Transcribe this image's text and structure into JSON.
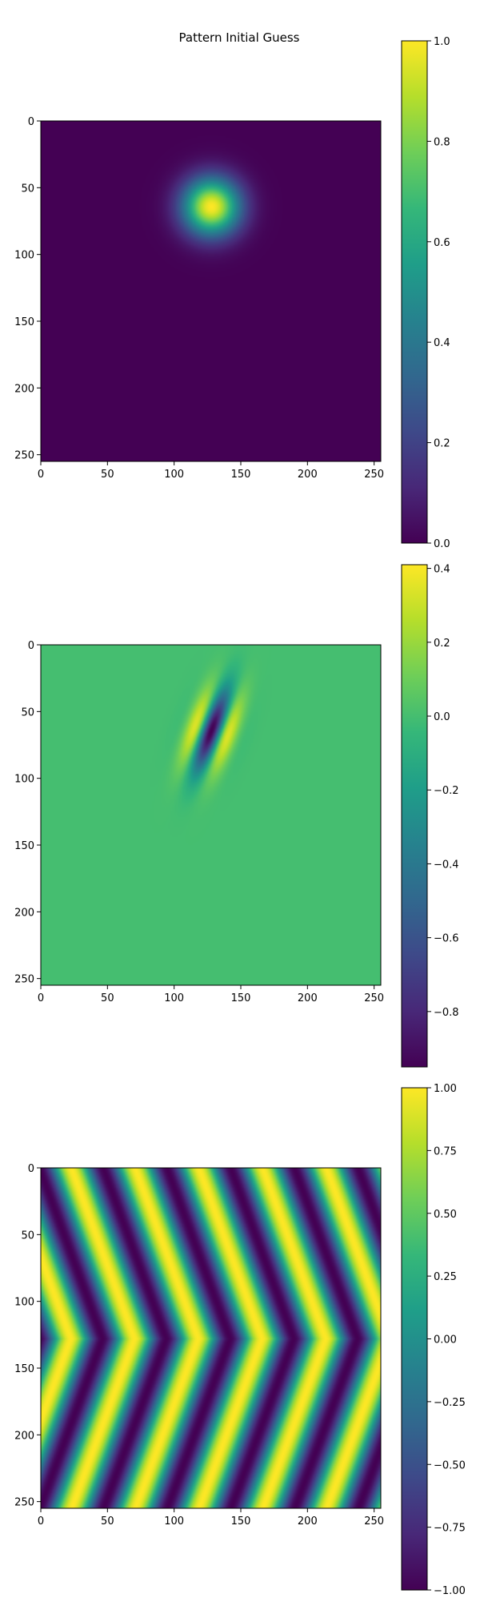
{
  "figure": {
    "title": "Pattern Initial Guess"
  },
  "colors": {
    "viridis": [
      "#440154",
      "#482878",
      "#3e4989",
      "#31688e",
      "#26828e",
      "#1f9e89",
      "#35b779",
      "#6ece58",
      "#b5de2b",
      "#fde725"
    ]
  },
  "chart_data": [
    {
      "type": "heatmap",
      "pattern": "gaussian blob",
      "title": "",
      "xlabel": "",
      "ylabel": "",
      "xlim": [
        0,
        255
      ],
      "ylim": [
        255,
        0
      ],
      "xticks": [
        "0",
        "50",
        "100",
        "150",
        "200",
        "250"
      ],
      "yticks": [
        "0",
        "50",
        "100",
        "150",
        "200",
        "250"
      ],
      "center": [
        128,
        64
      ],
      "value_range": [
        0.0,
        1.0
      ],
      "colorbar": {
        "colormap": "viridis",
        "range": [
          0.0,
          1.0
        ],
        "ticks": [
          {
            "value": 0.0,
            "label": "0.0"
          },
          {
            "value": 0.2,
            "label": "0.2"
          },
          {
            "value": 0.4,
            "label": "0.4"
          },
          {
            "value": 0.6,
            "label": "0.6"
          },
          {
            "value": 0.8,
            "label": "0.8"
          },
          {
            "value": 1.0,
            "label": "1.0"
          }
        ]
      }
    },
    {
      "type": "heatmap",
      "pattern": "oriented gabor-like blob",
      "title": "",
      "xlabel": "",
      "ylabel": "",
      "xlim": [
        0,
        255
      ],
      "ylim": [
        255,
        0
      ],
      "xticks": [
        "0",
        "50",
        "100",
        "150",
        "200",
        "250"
      ],
      "yticks": [
        "0",
        "50",
        "100",
        "150",
        "200",
        "250"
      ],
      "center": [
        128,
        64
      ],
      "value_range": [
        -0.95,
        0.41
      ],
      "colorbar": {
        "colormap": "viridis",
        "range": [
          -0.95,
          0.41
        ],
        "ticks": [
          {
            "value": -0.8,
            "label": "−0.8"
          },
          {
            "value": -0.6,
            "label": "−0.6"
          },
          {
            "value": -0.4,
            "label": "−0.4"
          },
          {
            "value": -0.2,
            "label": "−0.2"
          },
          {
            "value": 0.0,
            "label": "0.0"
          },
          {
            "value": 0.2,
            "label": "0.2"
          },
          {
            "value": 0.4,
            "label": "0.4"
          }
        ]
      }
    },
    {
      "type": "heatmap",
      "pattern": "chevron stripes",
      "title": "",
      "xlabel": "",
      "ylabel": "",
      "xlim": [
        0,
        255
      ],
      "ylim": [
        255,
        0
      ],
      "xticks": [
        "0",
        "50",
        "100",
        "150",
        "200",
        "250"
      ],
      "yticks": [
        "0",
        "50",
        "100",
        "150",
        "200",
        "250"
      ],
      "stripe_period": 48,
      "chevron_row": 128,
      "value_range": [
        -1.0,
        1.0
      ],
      "colorbar": {
        "colormap": "viridis",
        "range": [
          -1.0,
          1.0
        ],
        "ticks": [
          {
            "value": -1.0,
            "label": "−1.00"
          },
          {
            "value": -0.75,
            "label": "−0.75"
          },
          {
            "value": -0.5,
            "label": "−0.50"
          },
          {
            "value": -0.25,
            "label": "−0.25"
          },
          {
            "value": 0.0,
            "label": "0.00"
          },
          {
            "value": 0.25,
            "label": "0.25"
          },
          {
            "value": 0.5,
            "label": "0.50"
          },
          {
            "value": 0.75,
            "label": "0.75"
          },
          {
            "value": 1.0,
            "label": "1.00"
          }
        ]
      }
    }
  ]
}
